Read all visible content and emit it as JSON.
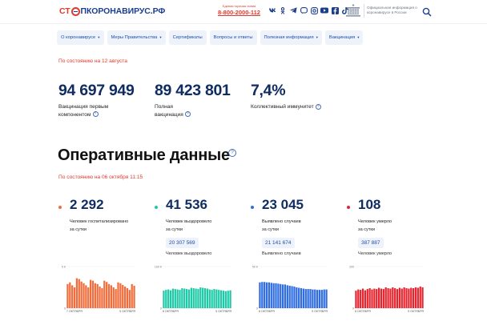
{
  "header": {
    "logo_stop": "СТ",
    "logo_name": "ПКОРОНАВИРУС.РФ",
    "hotline_caption": "Единая горячая линия",
    "hotline_number": "8-800-2000-112",
    "socials": [
      "vk-icon",
      "odnoklassniki-icon",
      "telegram-icon",
      "viber-icon",
      "instagram-icon",
      "youtube-icon",
      "facebook-icon",
      "tiktok-icon"
    ],
    "gov_text": "Официальная информация о коронавирусе в России"
  },
  "nav": [
    {
      "label": "О коронавирусе",
      "dropdown": true
    },
    {
      "label": "Меры Правительства",
      "dropdown": true
    },
    {
      "label": "Сертификаты",
      "dropdown": false
    },
    {
      "label": "Вопросы и ответы",
      "dropdown": false
    },
    {
      "label": "Полезная информация",
      "dropdown": true
    },
    {
      "label": "Вакцинация",
      "dropdown": true
    }
  ],
  "vaccination": {
    "as_of": "По состоянию на 12 августа",
    "first": {
      "value": "94 697 949",
      "label_line1": "Вакцинация первым",
      "label_line2": "компонентом"
    },
    "full": {
      "value": "89 423 801",
      "label_line1": "Полная",
      "label_line2": "вакцинация"
    },
    "immunity": {
      "value": "7,4%",
      "label": "Коллективный иммунитет"
    }
  },
  "operational": {
    "title": "Оперативные данные",
    "as_of": "По состоянию на 06 октября 11:15",
    "cards": [
      {
        "value": "2 292",
        "label_line1": "Человек госпитализировано",
        "label_line2": "за сутки",
        "total": "",
        "total_label": "",
        "dot_color": "#f26c3c",
        "bar_color": "#f26c3c",
        "y_max": "5 К",
        "x_start": "7 ОКТЯБРЯ",
        "x_end": "5 ОКТЯБРЯ",
        "values": [
          0.58,
          0.62,
          0.55,
          0.5,
          0.72,
          0.7,
          0.64,
          0.6,
          0.55,
          0.5,
          0.68,
          0.66,
          0.6,
          0.58,
          0.52,
          0.48,
          0.66,
          0.63,
          0.58,
          0.55,
          0.5,
          0.46,
          0.62,
          0.6,
          0.56,
          0.52,
          0.48,
          0.44,
          0.58,
          0.54
        ]
      },
      {
        "value": "41 536",
        "label_line1": "Человек выздоровело",
        "label_line2": "за сутки",
        "total": "20 307 569",
        "total_label": "Человек выздоровело",
        "dot_color": "#1ec9a7",
        "bar_color": "#1ec9a7",
        "y_max": "100 К",
        "x_start": "8 ОКТЯБРЯ",
        "x_end": "5 ОКТЯБРЯ",
        "values": [
          0.42,
          0.44,
          0.45,
          0.43,
          0.47,
          0.46,
          0.45,
          0.44,
          0.48,
          0.47,
          0.46,
          0.45,
          0.49,
          0.48,
          0.47,
          0.46,
          0.5,
          0.49,
          0.48,
          0.47,
          0.45,
          0.44,
          0.46,
          0.45,
          0.44,
          0.43,
          0.42,
          0.41,
          0.42,
          0.43
        ]
      },
      {
        "value": "23 045",
        "label_line1": "Выявлено случаев",
        "label_line2": "за сутки",
        "total": "21 141 674",
        "total_label": "Выявлено случаев",
        "dot_color": "#2f6de0",
        "bar_color": "#2f6de0",
        "y_max": "50 К",
        "x_start": "8 ОКТЯБРЯ",
        "x_end": "5 ОКТЯБРЯ",
        "values": [
          0.62,
          0.63,
          0.63,
          0.62,
          0.62,
          0.61,
          0.6,
          0.6,
          0.59,
          0.58,
          0.57,
          0.57,
          0.55,
          0.54,
          0.53,
          0.52,
          0.5,
          0.49,
          0.48,
          0.47,
          0.46,
          0.46,
          0.46,
          0.45,
          0.45,
          0.44,
          0.44,
          0.44,
          0.45,
          0.45
        ]
      },
      {
        "value": "108",
        "label_line1": "Человек умерло",
        "label_line2": "за сутки",
        "total": "387 887",
        "total_label": "Человек умерло",
        "dot_color": "#e2243a",
        "bar_color": "#e8242f",
        "y_max": "200",
        "x_start": "8 ОКТЯБРЯ",
        "x_end": "5 ОКТЯБРЯ",
        "values": [
          0.42,
          0.45,
          0.44,
          0.47,
          0.43,
          0.46,
          0.48,
          0.45,
          0.47,
          0.46,
          0.49,
          0.47,
          0.46,
          0.5,
          0.48,
          0.47,
          0.5,
          0.48,
          0.46,
          0.49,
          0.47,
          0.5,
          0.48,
          0.47,
          0.49,
          0.48,
          0.5,
          0.49,
          0.52,
          0.5
        ]
      }
    ]
  }
}
